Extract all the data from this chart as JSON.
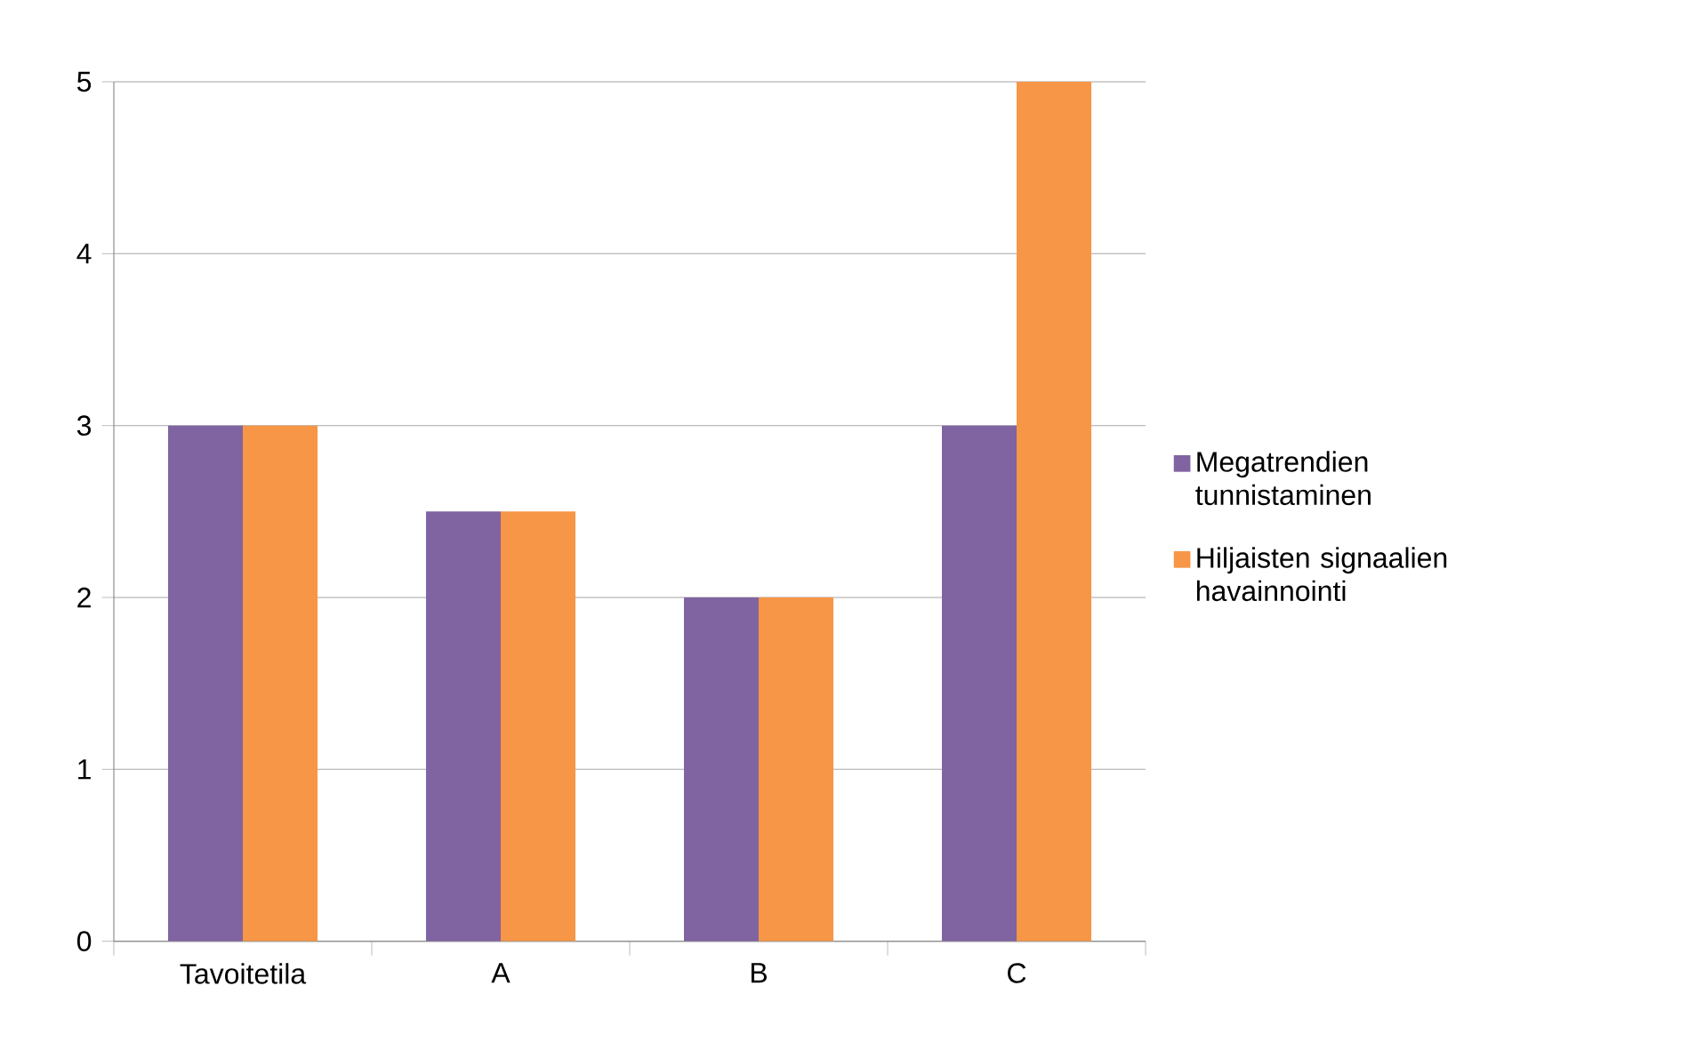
{
  "chart_data": {
    "type": "bar",
    "categories": [
      "Tavoitetila",
      "A",
      "B",
      "C"
    ],
    "series": [
      {
        "name": "Megatrendien tunnistaminen",
        "color": "#8064a2",
        "values": [
          3,
          2.5,
          2,
          3
        ]
      },
      {
        "name": "Hiljaisten signaalien havainnointi",
        "color": "#f79646",
        "values": [
          3,
          2.5,
          2,
          5
        ]
      }
    ],
    "ylim": [
      0,
      5
    ],
    "yticks": [
      0,
      1,
      2,
      3,
      4,
      5
    ],
    "grid": "y",
    "legend": "right"
  }
}
